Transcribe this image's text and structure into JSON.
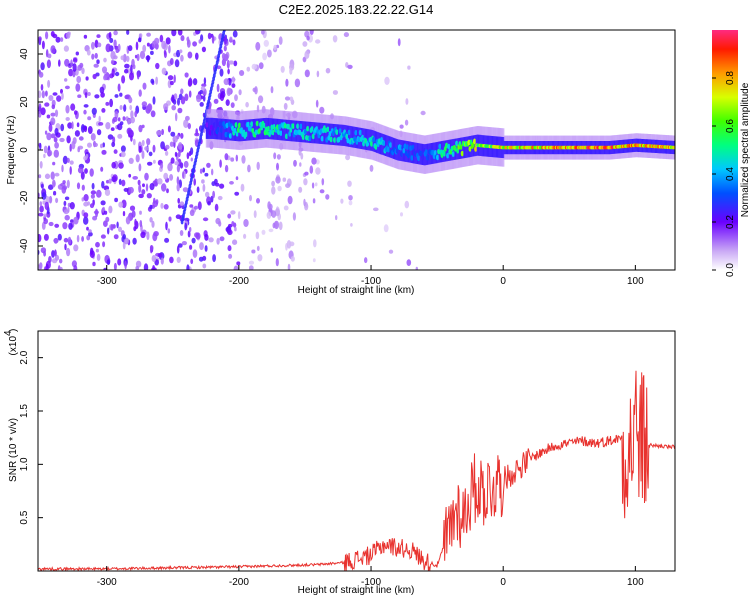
{
  "figure": {
    "title": "C2E2.2025.183.22.22.G14"
  },
  "chart_data": [
    {
      "type": "heatmap",
      "xlabel": "Height of straight line (km)",
      "ylabel": "Frequency (Hz)",
      "xlim": [
        -352,
        130
      ],
      "ylim": [
        -50,
        50
      ],
      "x_ticks": [
        -300,
        -200,
        -100,
        0,
        100
      ],
      "y_ticks": [
        -40,
        -20,
        0,
        20,
        40
      ],
      "colorbar": {
        "label": "Normalized spectral amplitude",
        "range": [
          0,
          1
        ],
        "ticks": [
          0.0,
          0.2,
          0.4,
          0.6,
          0.8
        ],
        "tick_labels": [
          "0.0",
          "0.2",
          "0.4",
          "0.6",
          "0.8"
        ]
      },
      "ridge": {
        "x": [
          -220,
          -200,
          -180,
          -160,
          -140,
          -120,
          -100,
          -80,
          -60,
          -40,
          -20,
          0,
          20,
          40,
          60,
          80,
          100,
          130
        ],
        "frequency_hz": [
          9,
          8,
          9,
          8,
          7,
          6,
          4,
          0,
          -2,
          0,
          2,
          1,
          1,
          1,
          1,
          1,
          2,
          1
        ],
        "peak_amplitude": [
          0.25,
          0.55,
          0.55,
          0.5,
          0.5,
          0.45,
          0.5,
          0.4,
          0.35,
          0.6,
          0.75,
          0.8,
          0.85,
          0.9,
          0.95,
          0.95,
          0.9,
          0.85
        ]
      },
      "grid": false
    },
    {
      "type": "line",
      "xlabel": "Height of straight line (km)",
      "ylabel": "SNR (10 * v/v)",
      "y_scale_label": "(x10",
      "y_scale_exponent": "4",
      "xlim": [
        -352,
        130
      ],
      "ylim": [
        0,
        2.25
      ],
      "x_ticks": [
        -300,
        -200,
        -100,
        0,
        100
      ],
      "y_ticks": [
        0.5,
        1.0,
        1.5,
        2.0
      ],
      "y_tick_labels": [
        "0.5",
        "1.0",
        "1.5",
        "2.0"
      ],
      "series": [
        {
          "color": "#e8322e",
          "x": [
            -352,
            -300,
            -250,
            -200,
            -170,
            -140,
            -120,
            -100,
            -90,
            -80,
            -70,
            -60,
            -50,
            -40,
            -35,
            -30,
            -25,
            -20,
            -15,
            -10,
            -5,
            0,
            10,
            20,
            30,
            40,
            50,
            60,
            70,
            80,
            90,
            95,
            100,
            105,
            110,
            120,
            130
          ],
          "y": [
            0.02,
            0.02,
            0.03,
            0.04,
            0.05,
            0.06,
            0.08,
            0.15,
            0.25,
            0.22,
            0.2,
            0.1,
            0.05,
            0.4,
            0.6,
            0.5,
            0.7,
            0.8,
            0.75,
            0.78,
            0.82,
            0.85,
            0.95,
            1.05,
            1.12,
            1.18,
            1.2,
            1.22,
            1.2,
            1.22,
            1.25,
            1.1,
            1.35,
            1.2,
            1.18,
            1.17,
            1.16
          ]
        }
      ],
      "grid": false
    }
  ]
}
